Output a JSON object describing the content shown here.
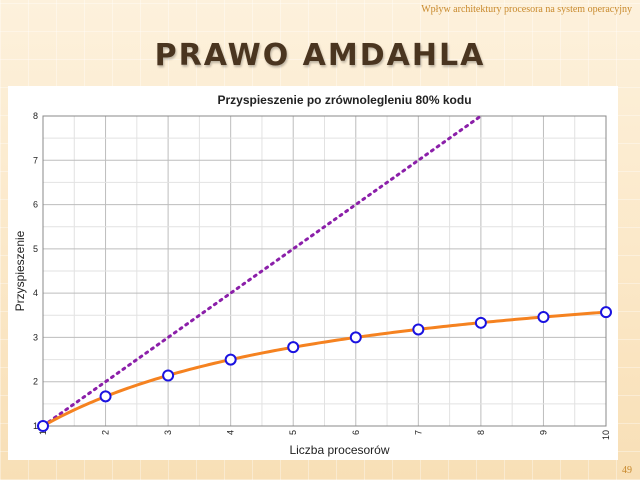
{
  "slide": {
    "header_note": "Wpływ architektury procesora na system operacyjny",
    "title": "PRAWO AMDAHLA",
    "page_number": "49"
  },
  "colors": {
    "amdahl_series": "#f58220",
    "ideal_series": "#8b1fa9",
    "marker_stroke": "#1a12e0",
    "title_text": "#4a3520",
    "accent": "#c8892c"
  },
  "chart_data": {
    "type": "line",
    "title": "Przyspieszenie po zrównolegleniu 80% kodu",
    "xlabel": "Liczba procesorów",
    "ylabel": "Przyspieszenie",
    "xlim": [
      1,
      10
    ],
    "ylim": [
      1,
      8
    ],
    "x_ticks": [
      1,
      2,
      3,
      4,
      5,
      6,
      7,
      8,
      9,
      10
    ],
    "y_ticks": [
      1,
      2,
      3,
      4,
      5,
      6,
      7,
      8
    ],
    "grid": true,
    "series": [
      {
        "style": "solid-with-markers",
        "x": [
          1,
          2,
          3,
          4,
          5,
          6,
          7,
          8,
          9,
          10
        ],
        "y": [
          1.0,
          1.67,
          2.14,
          2.5,
          2.78,
          3.0,
          3.18,
          3.33,
          3.46,
          3.57
        ]
      },
      {
        "style": "dotted",
        "x": [
          1,
          8
        ],
        "y": [
          1,
          8
        ]
      }
    ]
  }
}
